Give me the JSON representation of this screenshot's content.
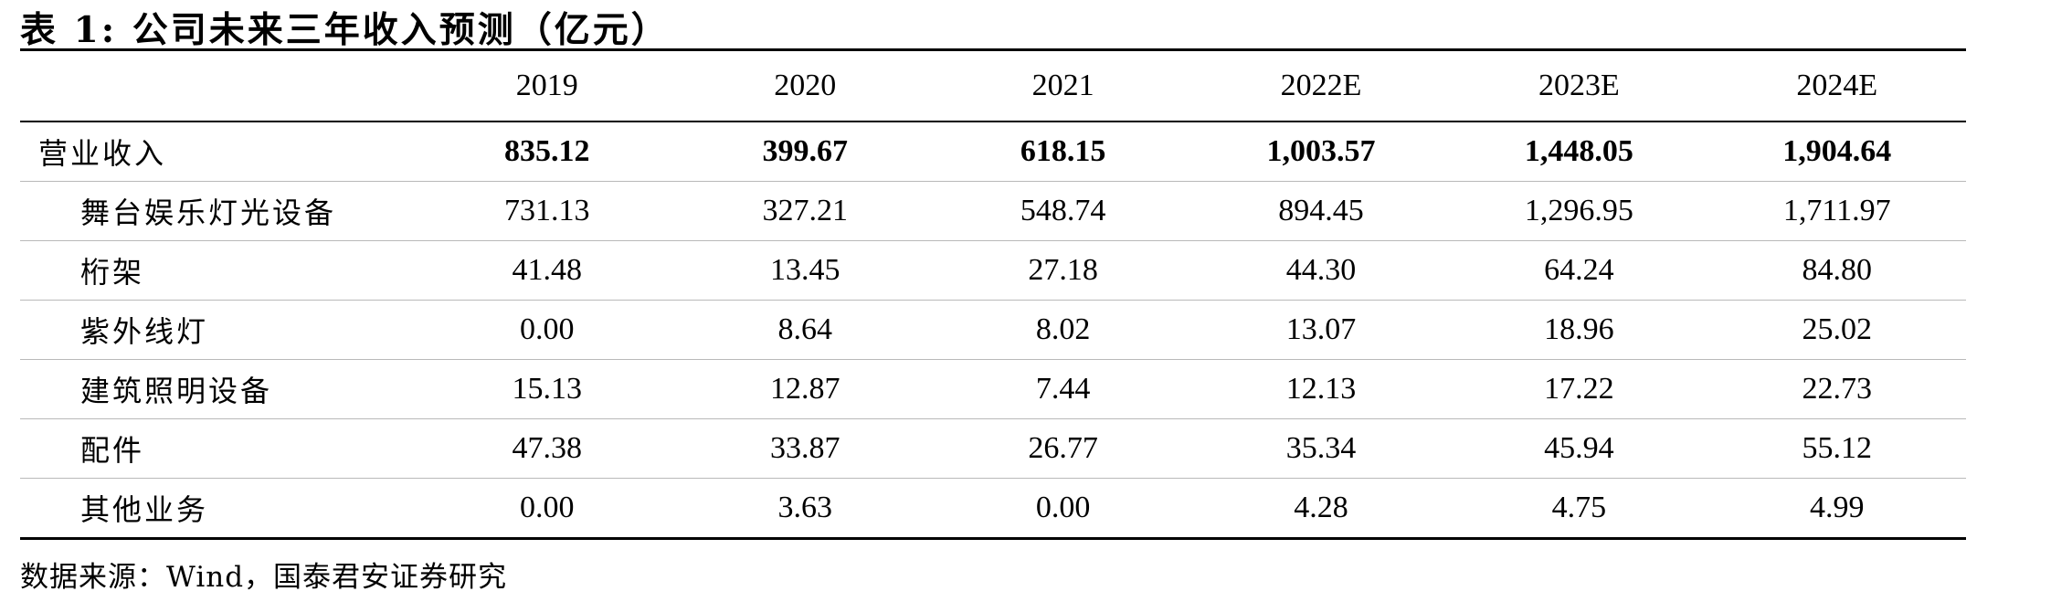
{
  "title": "表 1: 公司未来三年收入预测（亿元）",
  "table": {
    "columns": [
      "2019",
      "2020",
      "2021",
      "2022E",
      "2023E",
      "2024E"
    ],
    "rows": [
      {
        "label": "营业收入",
        "values": [
          "835.12",
          "399.67",
          "618.15",
          "1,003.57",
          "1,448.05",
          "1,904.64"
        ]
      },
      {
        "label": "舞台娱乐灯光设备",
        "values": [
          "731.13",
          "327.21",
          "548.74",
          "894.45",
          "1,296.95",
          "1,711.97"
        ]
      },
      {
        "label": "桁架",
        "values": [
          "41.48",
          "13.45",
          "27.18",
          "44.30",
          "64.24",
          "84.80"
        ]
      },
      {
        "label": "紫外线灯",
        "values": [
          "0.00",
          "8.64",
          "8.02",
          "13.07",
          "18.96",
          "25.02"
        ]
      },
      {
        "label": "建筑照明设备",
        "values": [
          "15.13",
          "12.87",
          "7.44",
          "12.13",
          "17.22",
          "22.73"
        ]
      },
      {
        "label": "配件",
        "values": [
          "47.38",
          "33.87",
          "26.77",
          "35.34",
          "45.94",
          "55.12"
        ]
      },
      {
        "label": "其他业务",
        "values": [
          "0.00",
          "3.63",
          "0.00",
          "4.28",
          "4.75",
          "4.99"
        ]
      }
    ]
  },
  "source": "数据来源：Wind，国泰君安证券研究"
}
